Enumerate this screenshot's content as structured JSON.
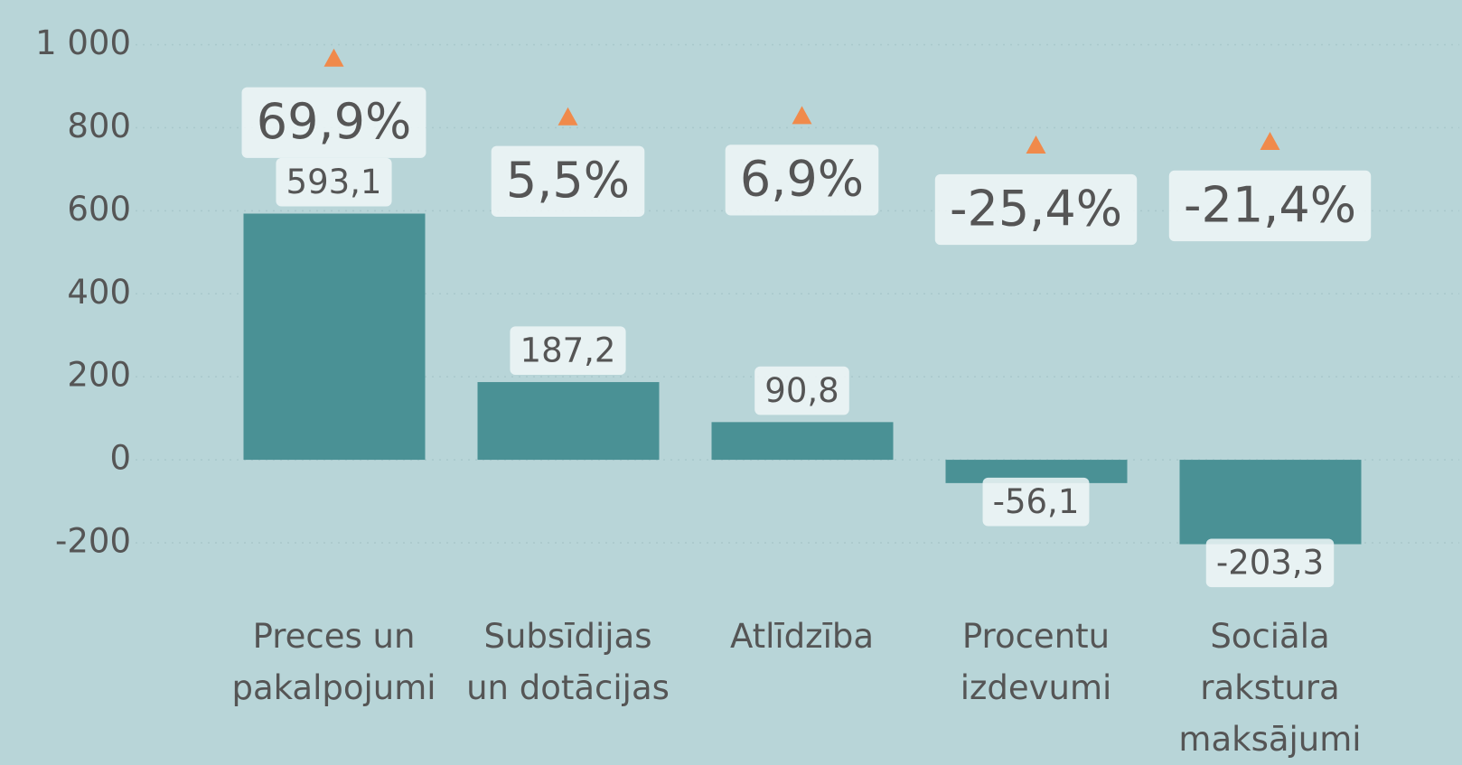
{
  "chart_data": {
    "type": "bar",
    "categories": [
      "Preces un pakalpojumi",
      "Subsīdijas un dotācijas",
      "Atlīdzība",
      "Procentu izdevumi",
      "Sociāla rakstura maksājumi"
    ],
    "series": [
      {
        "values": [
          593.1,
          187.2,
          90.8,
          -56.1,
          -203.3
        ],
        "value_labels": [
          "593,1",
          "187,2",
          "90,8",
          "-56,1",
          "-203,3"
        ],
        "color": "#4a9195"
      },
      {
        "axis": "y2",
        "type": "scatter",
        "values": [
          69.9,
          5.5,
          6.9,
          -25.4,
          -21.4
        ],
        "value_labels": [
          "69,9%",
          "5,5%",
          "6,9%",
          "-25,4%",
          "-21,4%"
        ],
        "color": "#f08a4b"
      }
    ],
    "ylim": [
      -200,
      1000
    ],
    "yticks": [
      -200,
      0,
      200,
      400,
      600,
      800,
      {
        "value": 1000,
        "label": "1 000"
      }
    ],
    "y2lim": [
      -462,
      84
    ],
    "grid": true
  }
}
